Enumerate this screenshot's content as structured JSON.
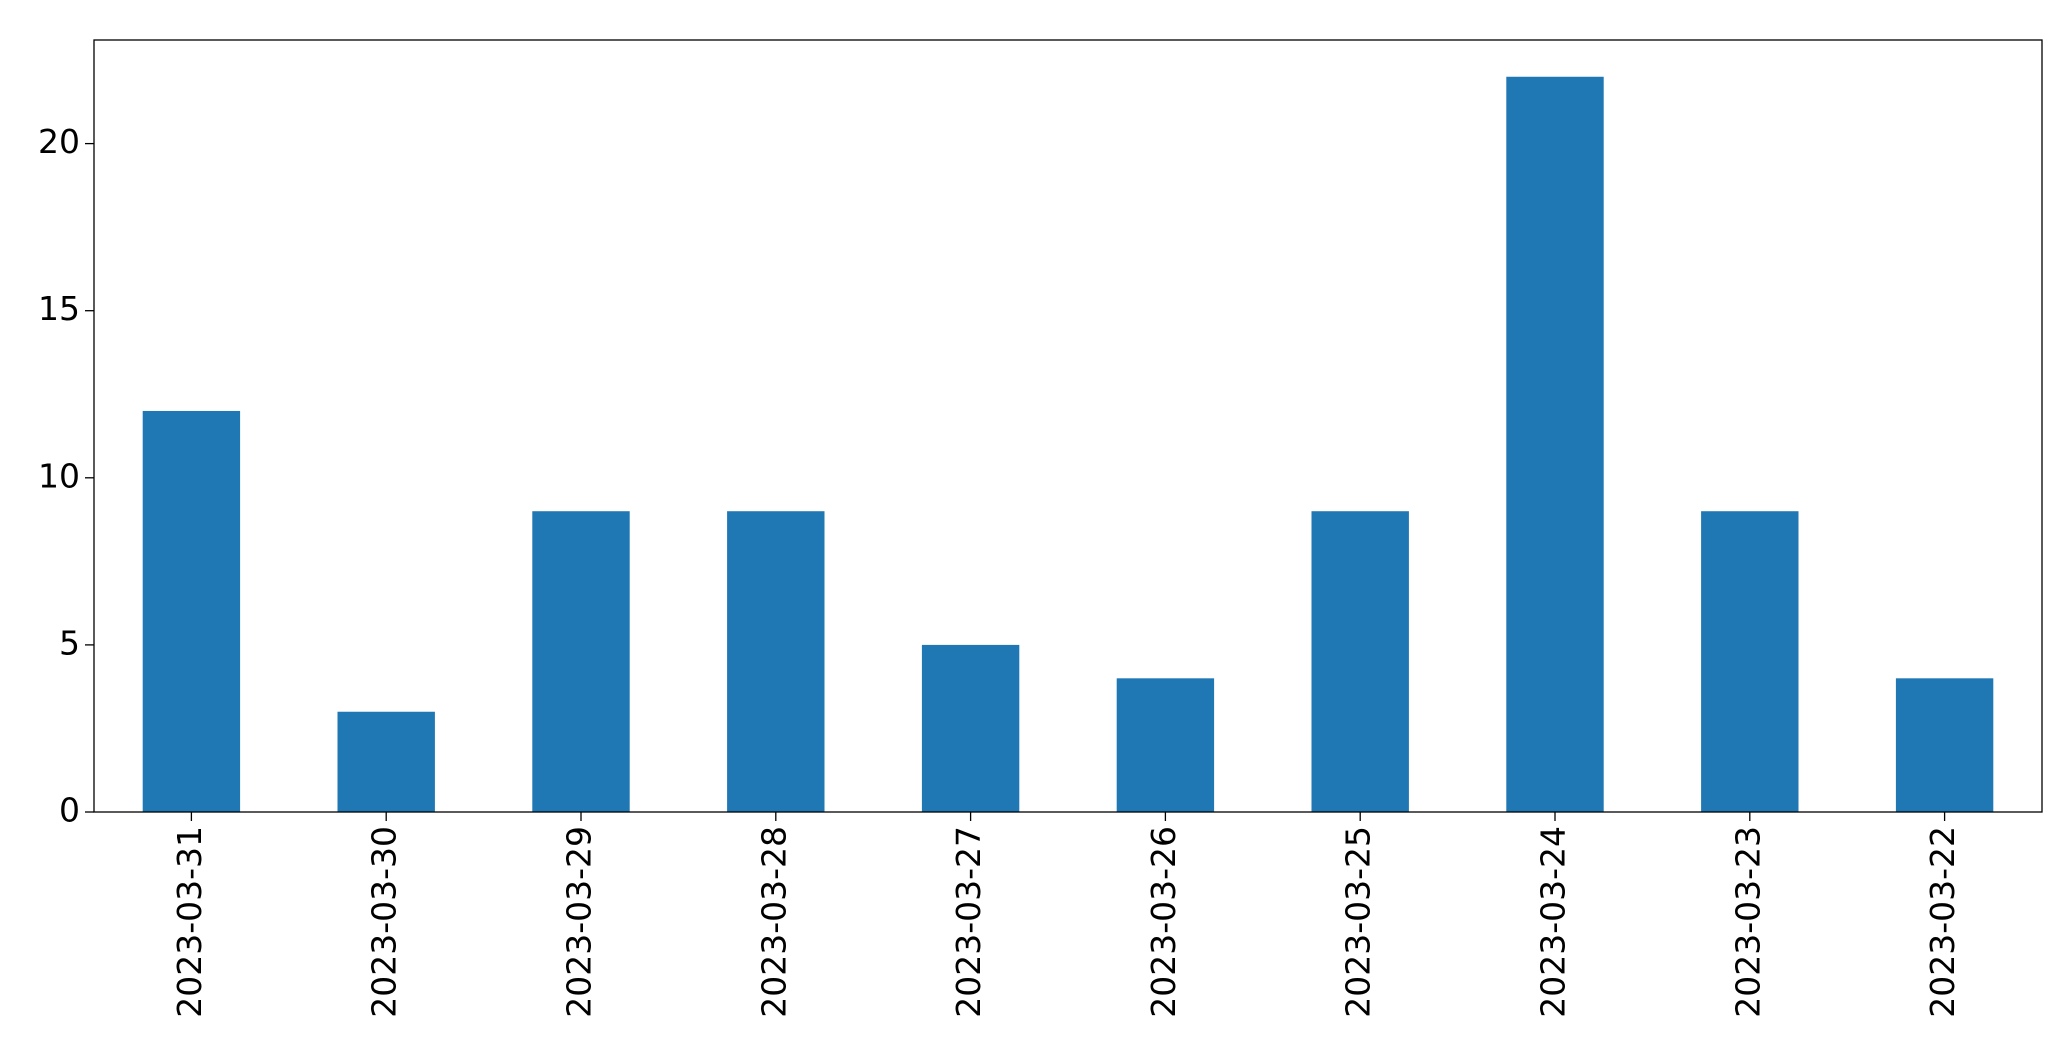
{
  "chart_data": {
    "type": "bar",
    "categories": [
      "2023-03-31",
      "2023-03-30",
      "2023-03-29",
      "2023-03-28",
      "2023-03-27",
      "2023-03-26",
      "2023-03-25",
      "2023-03-24",
      "2023-03-23",
      "2023-03-22"
    ],
    "values": [
      12,
      3,
      9,
      9,
      5,
      4,
      9,
      22,
      9,
      4
    ],
    "color": "#1f77b4",
    "ylim": [
      0,
      23.1
    ],
    "yticks": [
      0,
      5,
      10,
      15,
      20
    ],
    "grid": false
  }
}
